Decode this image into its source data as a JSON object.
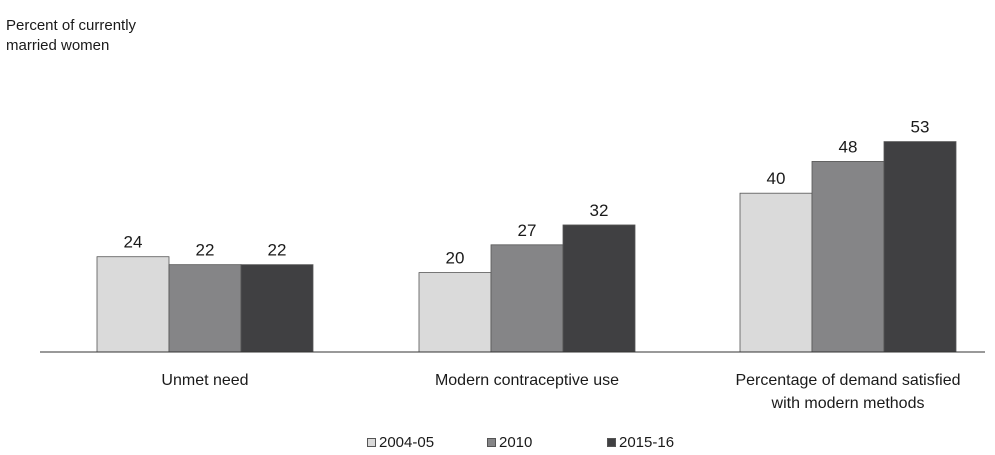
{
  "chart_data": {
    "type": "bar",
    "ylabel": "Percent of currently\nmarried women",
    "categories": [
      "Unmet need",
      "Modern contraceptive use",
      "Percentage of demand satisfied\nwith modern methods"
    ],
    "series": [
      {
        "name": "2004-05",
        "values": [
          24,
          20,
          40
        ],
        "color": "#dadada"
      },
      {
        "name": "2010",
        "values": [
          22,
          27,
          48
        ],
        "color": "#858587"
      },
      {
        "name": "2015-16",
        "values": [
          22,
          32,
          53
        ],
        "color": "#404042"
      }
    ],
    "ylim": [
      0,
      60
    ],
    "grid": false,
    "data_labels": true,
    "legend": "bottom-center"
  }
}
